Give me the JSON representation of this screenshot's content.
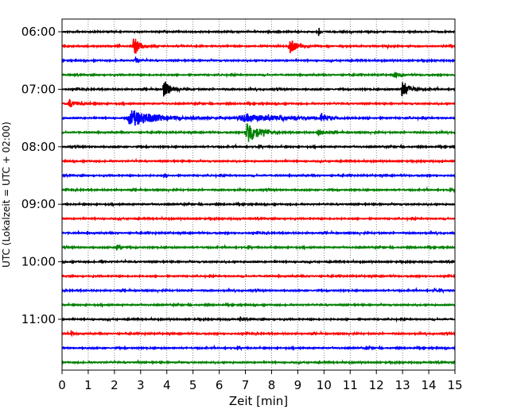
{
  "chart_data": {
    "type": "line",
    "title": "",
    "xlabel": "Zeit  [min]",
    "ylabel": "UTC (Lokalzeit = UTC + 02:00)",
    "xlim": [
      0,
      15
    ],
    "x_ticks": [
      "0",
      "1",
      "2",
      "3",
      "4",
      "5",
      "6",
      "7",
      "8",
      "9",
      "10",
      "11",
      "12",
      "13",
      "14",
      "15"
    ],
    "y_ticks": [
      "06:00",
      "07:00",
      "08:00",
      "09:00",
      "10:00",
      "11:00"
    ],
    "grid": "vertical dotted",
    "colors": [
      "#000000",
      "#ff0000",
      "#0000ff",
      "#008000"
    ],
    "trace_interval_min": 15,
    "traces": [
      {
        "start": "06:00",
        "color": "#000000",
        "events": [
          {
            "t": 9.8,
            "amp": 0.9,
            "w": 0.06
          }
        ]
      },
      {
        "start": "06:15",
        "color": "#ff0000",
        "events": [
          {
            "t": 2.75,
            "amp": 2.2,
            "w": 0.22
          },
          {
            "t": 8.7,
            "amp": 1.8,
            "w": 0.22
          }
        ]
      },
      {
        "start": "06:30",
        "color": "#0000ff",
        "events": [
          {
            "t": 2.8,
            "amp": 0.6,
            "w": 0.1
          }
        ]
      },
      {
        "start": "06:45",
        "color": "#008000",
        "events": [
          {
            "t": 12.7,
            "amp": 0.9,
            "w": 0.1
          }
        ]
      },
      {
        "start": "07:00",
        "color": "#000000",
        "events": [
          {
            "t": 3.9,
            "amp": 2.0,
            "w": 0.22
          },
          {
            "t": 13.0,
            "amp": 2.0,
            "w": 0.25
          }
        ]
      },
      {
        "start": "07:15",
        "color": "#ff0000",
        "events": [
          {
            "t": 0.3,
            "amp": 0.8,
            "w": 0.3
          }
        ]
      },
      {
        "start": "07:30",
        "color": "#0000ff",
        "events": [
          {
            "t": 2.7,
            "amp": 1.8,
            "w": 0.9
          },
          {
            "t": 7.0,
            "amp": 0.8,
            "w": 1.5
          },
          {
            "t": 9.9,
            "amp": 1.1,
            "w": 0.2
          }
        ]
      },
      {
        "start": "07:45",
        "color": "#008000",
        "events": [
          {
            "t": 7.1,
            "amp": 2.8,
            "w": 0.35
          },
          {
            "t": 9.8,
            "amp": 0.6,
            "w": 0.2
          }
        ]
      },
      {
        "start": "08:00",
        "color": "#000000",
        "events": []
      },
      {
        "start": "08:15",
        "color": "#ff0000",
        "events": []
      },
      {
        "start": "08:30",
        "color": "#0000ff",
        "events": [
          {
            "t": 3.9,
            "amp": 0.6,
            "w": 0.06
          }
        ]
      },
      {
        "start": "08:45",
        "color": "#008000",
        "events": []
      },
      {
        "start": "09:00",
        "color": "#000000",
        "events": []
      },
      {
        "start": "09:15",
        "color": "#ff0000",
        "events": []
      },
      {
        "start": "09:30",
        "color": "#0000ff",
        "events": []
      },
      {
        "start": "09:45",
        "color": "#008000",
        "events": [
          {
            "t": 2.1,
            "amp": 1.0,
            "w": 0.1
          }
        ]
      },
      {
        "start": "10:00",
        "color": "#000000",
        "events": [
          {
            "t": 1.5,
            "amp": 0.7,
            "w": 0.06
          }
        ]
      },
      {
        "start": "10:15",
        "color": "#ff0000",
        "events": []
      },
      {
        "start": "10:30",
        "color": "#0000ff",
        "events": [
          {
            "t": 14.2,
            "amp": 0.5,
            "w": 0.05
          }
        ]
      },
      {
        "start": "10:45",
        "color": "#008000",
        "events": []
      },
      {
        "start": "11:00",
        "color": "#000000",
        "events": [
          {
            "t": 6.8,
            "amp": 0.7,
            "w": 0.05
          }
        ]
      },
      {
        "start": "11:15",
        "color": "#ff0000",
        "events": [
          {
            "t": 0.35,
            "amp": 0.7,
            "w": 0.06
          }
        ]
      },
      {
        "start": "11:30",
        "color": "#0000ff",
        "events": [
          {
            "t": 11.6,
            "amp": 0.6,
            "w": 0.08
          }
        ]
      },
      {
        "start": "11:45",
        "color": "#008000",
        "events": []
      }
    ]
  }
}
